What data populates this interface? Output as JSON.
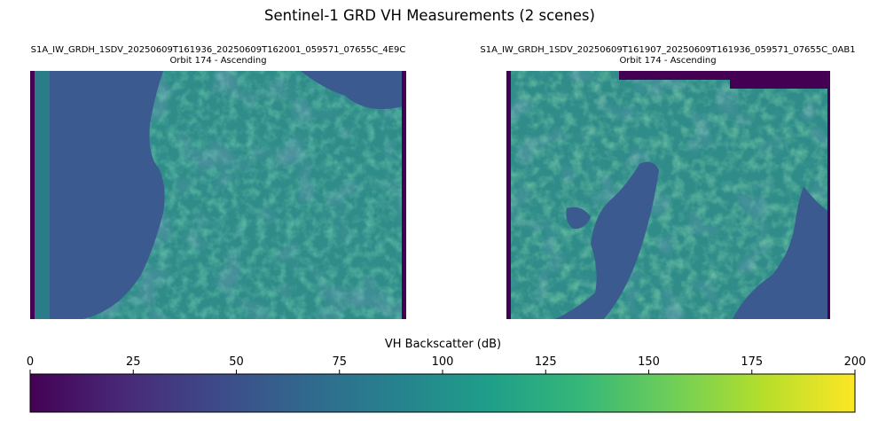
{
  "figure": {
    "title": "Sentinel-1 GRD VH Measurements (2 scenes)"
  },
  "scenes": [
    {
      "id": "S1A_IW_GRDH_1SDV_20250609T161936_20250609T162001_059571_07655C_4E9C",
      "subtitle": "Orbit 174 - Ascending"
    },
    {
      "id": "S1A_IW_GRDH_1SDV_20250609T161907_20250609T161936_059571_07655C_0AB1",
      "subtitle": "Orbit 174 - Ascending"
    }
  ],
  "chart_data": {
    "type": "heatmap",
    "title": "Sentinel-1 GRD VH Measurements (2 scenes)",
    "colorbar": {
      "label": "VH Backscatter (dB)",
      "colormap": "viridis",
      "range": [
        0,
        200
      ],
      "ticks": [
        0,
        25,
        50,
        75,
        100,
        125,
        150,
        175,
        200
      ],
      "orientation": "horizontal",
      "placement": "bottom"
    }
  },
  "colors": {
    "viridis_stops": [
      "#440154",
      "#482878",
      "#3e4989",
      "#31688e",
      "#26828e",
      "#1f9e89",
      "#35b779",
      "#6ece58",
      "#b5de2b",
      "#fde725"
    ],
    "water": "#3b5a8f",
    "land": "#2f8c89",
    "land_bright": "#4fb27a",
    "nodata": "#440154"
  }
}
